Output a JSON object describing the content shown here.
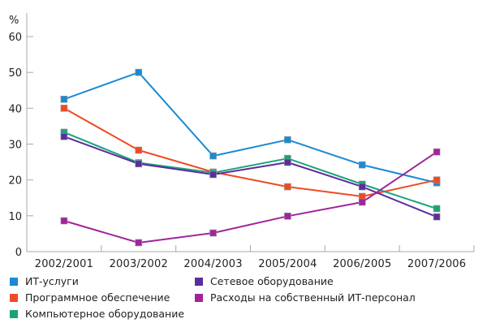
{
  "chart_data": {
    "type": "line",
    "title": "",
    "xlabel": "",
    "ylabel": "%",
    "ylim": [
      0,
      65
    ],
    "yticks": [
      0,
      10,
      20,
      30,
      40,
      50,
      60
    ],
    "grid": false,
    "legend_position": "bottom",
    "categories": [
      "2002/2001",
      "2003/2002",
      "2004/2003",
      "2005/2004",
      "2006/2005",
      "2007/2006"
    ],
    "series": [
      {
        "name": "ИТ-услуги",
        "color": "#1a8ad4",
        "values": [
          42.5,
          50.0,
          26.7,
          31.2,
          24.2,
          19.2
        ]
      },
      {
        "name": "Программное обеспечение",
        "color": "#f04a23",
        "values": [
          40.0,
          28.3,
          22.2,
          18.1,
          15.4,
          20.0
        ]
      },
      {
        "name": "Компьютерное оборудование",
        "color": "#1aa37a",
        "values": [
          33.3,
          24.8,
          22.0,
          26.0,
          18.8,
          12.0
        ]
      },
      {
        "name": "Сетевое оборудование",
        "color": "#5b2d9e",
        "values": [
          32.1,
          24.5,
          21.5,
          24.9,
          18.1,
          9.7
        ]
      },
      {
        "name": "Расходы на собственный ИТ-персонал",
        "color": "#a0259a",
        "values": [
          8.6,
          2.5,
          5.2,
          9.9,
          13.8,
          27.8
        ]
      }
    ]
  }
}
